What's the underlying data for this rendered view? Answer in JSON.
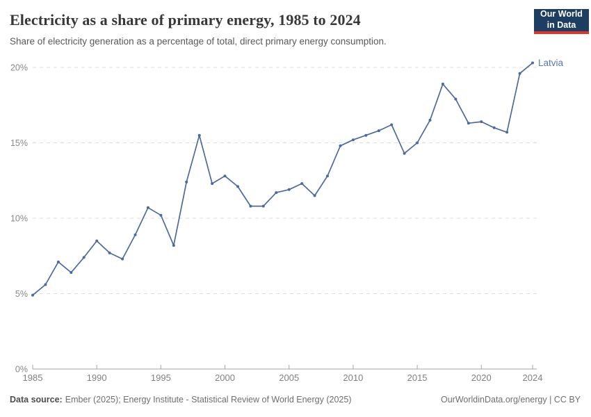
{
  "header": {
    "title": "Electricity as a share of primary energy, 1985 to 2024",
    "subtitle": "Share of electricity generation as a percentage of total, direct primary energy consumption."
  },
  "logo": {
    "line1": "Our World",
    "line2": "in Data",
    "bg_color": "#1d3d63",
    "accent_color": "#dc352c"
  },
  "chart_data": {
    "type": "line",
    "title": "Electricity as a share of primary energy, 1985 to 2024",
    "xlabel": "",
    "ylabel": "",
    "xlim": [
      1985,
      2024
    ],
    "ylim": [
      0,
      20.5
    ],
    "grid": "horizontal-dashed",
    "legend_position": "end-of-line-label",
    "x_ticks": [
      1985,
      1990,
      1995,
      2000,
      2005,
      2010,
      2015,
      2020,
      2024
    ],
    "y_ticks": [
      0,
      5,
      10,
      15,
      20
    ],
    "y_tick_suffix": "%",
    "series": [
      {
        "name": "Latvia",
        "color": "#4c6a9c",
        "label_color": "#5878ab",
        "x": [
          1985,
          1986,
          1987,
          1988,
          1989,
          1990,
          1991,
          1992,
          1993,
          1994,
          1995,
          1996,
          1997,
          1998,
          1999,
          2000,
          2001,
          2002,
          2003,
          2004,
          2005,
          2006,
          2007,
          2008,
          2009,
          2010,
          2011,
          2012,
          2013,
          2014,
          2015,
          2016,
          2017,
          2018,
          2019,
          2020,
          2021,
          2022,
          2023,
          2024
        ],
        "values": [
          4.9,
          5.6,
          7.1,
          6.4,
          7.4,
          8.5,
          7.7,
          7.3,
          8.9,
          10.7,
          10.2,
          8.2,
          12.4,
          15.5,
          12.3,
          12.8,
          12.1,
          10.8,
          10.8,
          11.7,
          11.9,
          12.3,
          11.5,
          12.8,
          14.8,
          15.2,
          15.5,
          15.8,
          16.2,
          14.3,
          15.0,
          16.5,
          18.9,
          17.9,
          16.3,
          16.4,
          16.0,
          15.7,
          19.6,
          20.3
        ]
      }
    ]
  },
  "footer": {
    "datasource_label": "Data source:",
    "datasource_text": "Ember (2025); Energy Institute - Statistical Review of World Energy (2025)",
    "rights": "OurWorldinData.org/energy | CC BY"
  }
}
